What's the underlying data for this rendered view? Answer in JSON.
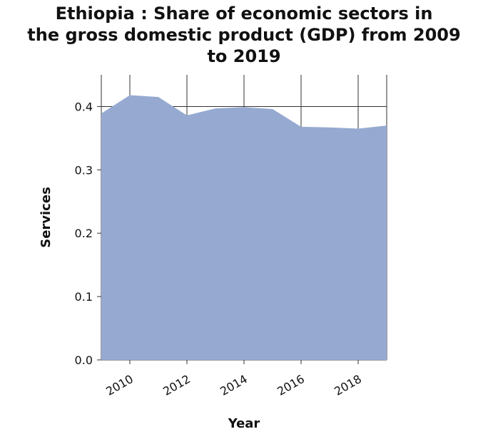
{
  "chart_data": {
    "type": "area",
    "title": "Ethiopia : Share of economic sectors in\nthe gross domestic product (GDP) from 2009\nto 2019",
    "xlabel": "Year",
    "ylabel": "Services",
    "x": [
      2009,
      2010,
      2011,
      2012,
      2013,
      2014,
      2015,
      2016,
      2017,
      2018,
      2019
    ],
    "series": [
      {
        "values": [
          0.389,
          0.418,
          0.415,
          0.386,
          0.397,
          0.399,
          0.396,
          0.368,
          0.367,
          0.365,
          0.37
        ]
      }
    ],
    "xlim": [
      2009,
      2019
    ],
    "ylim": [
      0,
      0.4
    ],
    "xticks": [
      "2010",
      "2012",
      "2014",
      "2016",
      "2018"
    ],
    "yticks": [
      "0.0",
      "0.1",
      "0.2",
      "0.3",
      "0.4"
    ],
    "grid": true,
    "fill_color": "#96aad1"
  }
}
